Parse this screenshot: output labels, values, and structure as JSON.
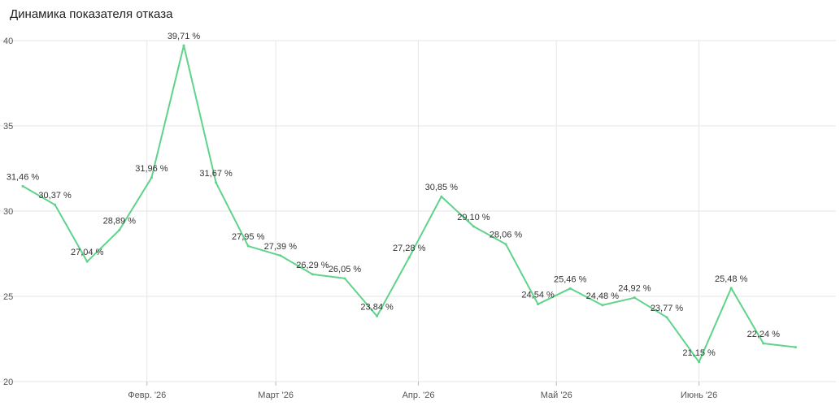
{
  "title": "Динамика показателя отказа",
  "chart_data": {
    "type": "line",
    "title": "Динамика показателя отказа",
    "xlabel": "",
    "ylabel": "",
    "ylim": [
      20,
      40
    ],
    "yticks": [
      20,
      25,
      30,
      35,
      40
    ],
    "x_range": [
      "2026-01-05",
      "2026-06-29"
    ],
    "xtick_labels": [
      {
        "date": "2026-02-01",
        "label": "Февр. '26"
      },
      {
        "date": "2026-03-01",
        "label": "Март '26"
      },
      {
        "date": "2026-04-01",
        "label": "Апр. '26"
      },
      {
        "date": "2026-05-01",
        "label": "Май '26"
      },
      {
        "date": "2026-06-01",
        "label": "Июнь '26"
      }
    ],
    "grid": true,
    "line_color": "#5fd38a",
    "series": [
      {
        "points": [
          {
            "date": "2026-01-05",
            "y": 31.46,
            "label": "31,46 %"
          },
          {
            "date": "2026-01-12",
            "y": 30.37,
            "label": "30,37 %"
          },
          {
            "date": "2026-01-19",
            "y": 27.04,
            "label": "27,04 %"
          },
          {
            "date": "2026-01-26",
            "y": 28.89,
            "label": "28,89 %"
          },
          {
            "date": "2026-02-02",
            "y": 31.96,
            "label": "31,96 %"
          },
          {
            "date": "2026-02-09",
            "y": 39.71,
            "label": "39,71 %"
          },
          {
            "date": "2026-02-16",
            "y": 31.67,
            "label": "31,67 %"
          },
          {
            "date": "2026-02-23",
            "y": 27.95,
            "label": "27,95 %"
          },
          {
            "date": "2026-03-02",
            "y": 27.39,
            "label": "27,39 %"
          },
          {
            "date": "2026-03-09",
            "y": 26.29,
            "label": "26,29 %"
          },
          {
            "date": "2026-03-16",
            "y": 26.05,
            "label": "26,05 %"
          },
          {
            "date": "2026-03-23",
            "y": 23.84,
            "label": "23,84 %"
          },
          {
            "date": "2026-03-30",
            "y": 27.28,
            "label": "27,28 %"
          },
          {
            "date": "2026-04-06",
            "y": 30.85,
            "label": "30,85 %"
          },
          {
            "date": "2026-04-13",
            "y": 29.1,
            "label": "29,10 %"
          },
          {
            "date": "2026-04-20",
            "y": 28.06,
            "label": "28,06 %"
          },
          {
            "date": "2026-04-27",
            "y": 24.54,
            "label": "24,54 %"
          },
          {
            "date": "2026-05-04",
            "y": 25.46,
            "label": "25,46 %"
          },
          {
            "date": "2026-05-11",
            "y": 24.48,
            "label": "24,48 %"
          },
          {
            "date": "2026-05-18",
            "y": 24.92,
            "label": "24,92 %"
          },
          {
            "date": "2026-05-25",
            "y": 23.77,
            "label": "23,77 %"
          },
          {
            "date": "2026-06-01",
            "y": 21.15,
            "label": "21,15 %"
          },
          {
            "date": "2026-06-08",
            "y": 25.48,
            "label": "25,48 %"
          },
          {
            "date": "2026-06-15",
            "y": 22.24,
            "label": "22,24 %"
          },
          {
            "date": "2026-06-22",
            "y": 22.02,
            "label": ""
          }
        ]
      }
    ]
  }
}
